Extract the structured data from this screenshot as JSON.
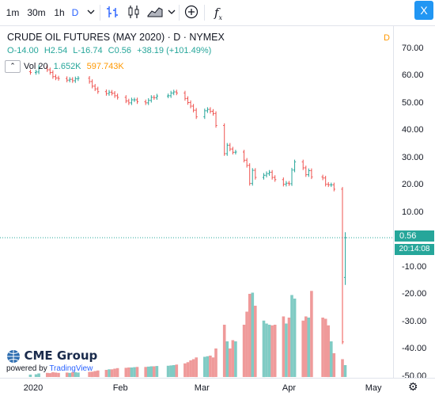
{
  "toolbar": {
    "intervals": [
      "1m",
      "30m",
      "1h",
      "D"
    ],
    "active_interval": "D",
    "close_label": "X"
  },
  "legend": {
    "title": "CRUDE OIL FUTURES (MAY 2020) · D · NYMEX",
    "open_label": "O",
    "open": "-14.00",
    "high_label": "H",
    "high": "2.54",
    "low_label": "L",
    "low": "-16.74",
    "close_label": "C",
    "close": "0.56",
    "change": "+38.19 (+101.49%)",
    "vol_label": "Vol 20",
    "vol_value1": "1.652K",
    "vol_value2": "597.743K"
  },
  "price_axis": {
    "labels": [
      "70.00",
      "60.00",
      "50.00",
      "40.00",
      "30.00",
      "20.00",
      "10.00",
      "-10.00",
      "-20.00",
      "-30.00",
      "-40.00",
      "-50.00"
    ],
    "d_marker": "D",
    "current_price": "0.56",
    "current_time": "20:14:08"
  },
  "time_axis": {
    "labels": [
      "2020",
      "Feb",
      "Mar",
      "Apr",
      "May"
    ]
  },
  "branding": {
    "logo": "CME Group",
    "powered_by": "powered by",
    "tradingview": "TradingView"
  },
  "colors": {
    "up": "#26a69a",
    "down": "#ef5350",
    "vol_up": "#80cbc4",
    "vol_down": "#ef9a9a",
    "accent": "#2962ff",
    "price_tag": "#26a69a"
  },
  "chart_data": {
    "type": "candlestick",
    "title": "CRUDE OIL FUTURES (MAY 2020) · D · NYMEX",
    "ylim": [
      -50,
      75
    ],
    "price_series": [
      {
        "d": "2019-12-31",
        "c": 61.0
      },
      {
        "d": "2020-01-02",
        "c": 61.2
      },
      {
        "d": "2020-01-03",
        "c": 63.0
      },
      {
        "d": "2020-01-06",
        "c": 62.0
      },
      {
        "d": "2020-01-07",
        "c": 61.0
      },
      {
        "d": "2020-01-08",
        "c": 59.5
      },
      {
        "d": "2020-01-09",
        "c": 59.0
      },
      {
        "d": "2020-01-10",
        "c": 58.8
      },
      {
        "d": "2020-01-13",
        "c": 58.2
      },
      {
        "d": "2020-01-14",
        "c": 58.5
      },
      {
        "d": "2020-01-15",
        "c": 58.0
      },
      {
        "d": "2020-01-16",
        "c": 58.7
      },
      {
        "d": "2020-01-17",
        "c": 58.9
      },
      {
        "d": "2020-01-21",
        "c": 57.7
      },
      {
        "d": "2020-01-22",
        "c": 56.0
      },
      {
        "d": "2020-01-23",
        "c": 55.0
      },
      {
        "d": "2020-01-24",
        "c": 54.0
      },
      {
        "d": "2020-01-27",
        "c": 53.3
      },
      {
        "d": "2020-01-28",
        "c": 53.8
      },
      {
        "d": "2020-01-29",
        "c": 53.4
      },
      {
        "d": "2020-01-30",
        "c": 52.5
      },
      {
        "d": "2020-01-31",
        "c": 51.9
      },
      {
        "d": "2020-02-03",
        "c": 50.6
      },
      {
        "d": "2020-02-04",
        "c": 49.9
      },
      {
        "d": "2020-02-05",
        "c": 51.0
      },
      {
        "d": "2020-02-06",
        "c": 51.0
      },
      {
        "d": "2020-02-07",
        "c": 50.3
      },
      {
        "d": "2020-02-10",
        "c": 49.9
      },
      {
        "d": "2020-02-11",
        "c": 50.8
      },
      {
        "d": "2020-02-12",
        "c": 51.9
      },
      {
        "d": "2020-02-13",
        "c": 51.8
      },
      {
        "d": "2020-02-14",
        "c": 52.4
      },
      {
        "d": "2020-02-18",
        "c": 52.5
      },
      {
        "d": "2020-02-19",
        "c": 53.5
      },
      {
        "d": "2020-02-20",
        "c": 53.9
      },
      {
        "d": "2020-02-21",
        "c": 53.5
      },
      {
        "d": "2020-02-24",
        "c": 51.5
      },
      {
        "d": "2020-02-25",
        "c": 50.0
      },
      {
        "d": "2020-02-26",
        "c": 48.7
      },
      {
        "d": "2020-02-27",
        "c": 47.2
      },
      {
        "d": "2020-02-28",
        "c": 44.8
      },
      {
        "d": "2020-03-02",
        "c": 47.0
      },
      {
        "d": "2020-03-03",
        "c": 47.5
      },
      {
        "d": "2020-03-04",
        "c": 46.8
      },
      {
        "d": "2020-03-05",
        "c": 46.0
      },
      {
        "d": "2020-03-06",
        "c": 41.6
      },
      {
        "d": "2020-03-09",
        "c": 31.3
      },
      {
        "d": "2020-03-10",
        "c": 34.4
      },
      {
        "d": "2020-03-11",
        "c": 33.0
      },
      {
        "d": "2020-03-12",
        "c": 31.8
      },
      {
        "d": "2020-03-13",
        "c": 31.9
      },
      {
        "d": "2020-03-16",
        "c": 28.9
      },
      {
        "d": "2020-03-17",
        "c": 27.0
      },
      {
        "d": "2020-03-18",
        "c": 20.4
      },
      {
        "d": "2020-03-19",
        "c": 25.2
      },
      {
        "d": "2020-03-20",
        "c": 22.6
      },
      {
        "d": "2020-03-23",
        "c": 23.4
      },
      {
        "d": "2020-03-24",
        "c": 24.0
      },
      {
        "d": "2020-03-25",
        "c": 24.5
      },
      {
        "d": "2020-03-26",
        "c": 22.6
      },
      {
        "d": "2020-03-27",
        "c": 21.8
      },
      {
        "d": "2020-03-30",
        "c": 20.1
      },
      {
        "d": "2020-03-31",
        "c": 20.5
      },
      {
        "d": "2020-04-01",
        "c": 20.3
      },
      {
        "d": "2020-04-02",
        "c": 25.3
      },
      {
        "d": "2020-04-03",
        "c": 28.3
      },
      {
        "d": "2020-04-06",
        "c": 26.1
      },
      {
        "d": "2020-04-07",
        "c": 23.6
      },
      {
        "d": "2020-04-08",
        "c": 25.1
      },
      {
        "d": "2020-04-09",
        "c": 22.8
      },
      {
        "d": "2020-04-13",
        "c": 22.4
      },
      {
        "d": "2020-04-14",
        "c": 20.1
      },
      {
        "d": "2020-04-15",
        "c": 19.9
      },
      {
        "d": "2020-04-16",
        "c": 19.9
      },
      {
        "d": "2020-04-17",
        "c": 18.3
      },
      {
        "d": "2020-04-20",
        "c": -37.6
      },
      {
        "d": "2020-04-21",
        "c": 0.56,
        "o": -14.0,
        "h": 2.54,
        "l": -16.74
      }
    ],
    "volume_series": [
      {
        "d": "2019-12-31",
        "v": 40
      },
      {
        "d": "2020-01-02",
        "v": 45
      },
      {
        "d": "2020-01-03",
        "v": 60
      },
      {
        "d": "2020-01-06",
        "v": 70
      },
      {
        "d": "2020-01-07",
        "v": 65
      },
      {
        "d": "2020-01-08",
        "v": 80
      },
      {
        "d": "2020-01-09",
        "v": 75
      },
      {
        "d": "2020-01-10",
        "v": 70
      },
      {
        "d": "2020-01-13",
        "v": 75
      },
      {
        "d": "2020-01-14",
        "v": 70
      },
      {
        "d": "2020-01-15",
        "v": 78
      },
      {
        "d": "2020-01-16",
        "v": 80
      },
      {
        "d": "2020-01-17",
        "v": 75
      },
      {
        "d": "2020-01-21",
        "v": 85
      },
      {
        "d": "2020-01-22",
        "v": 90
      },
      {
        "d": "2020-01-23",
        "v": 100
      },
      {
        "d": "2020-01-24",
        "v": 110
      },
      {
        "d": "2020-01-27",
        "v": 120
      },
      {
        "d": "2020-01-28",
        "v": 130
      },
      {
        "d": "2020-01-29",
        "v": 130
      },
      {
        "d": "2020-01-30",
        "v": 140
      },
      {
        "d": "2020-01-31",
        "v": 150
      },
      {
        "d": "2020-02-03",
        "v": 155
      },
      {
        "d": "2020-02-04",
        "v": 160
      },
      {
        "d": "2020-02-05",
        "v": 160
      },
      {
        "d": "2020-02-06",
        "v": 165
      },
      {
        "d": "2020-02-07",
        "v": 170
      },
      {
        "d": "2020-02-10",
        "v": 170
      },
      {
        "d": "2020-02-11",
        "v": 175
      },
      {
        "d": "2020-02-12",
        "v": 180
      },
      {
        "d": "2020-02-13",
        "v": 180
      },
      {
        "d": "2020-02-14",
        "v": 185
      },
      {
        "d": "2020-02-18",
        "v": 190
      },
      {
        "d": "2020-02-19",
        "v": 195
      },
      {
        "d": "2020-02-20",
        "v": 200
      },
      {
        "d": "2020-02-21",
        "v": 210
      },
      {
        "d": "2020-02-24",
        "v": 230
      },
      {
        "d": "2020-02-25",
        "v": 250
      },
      {
        "d": "2020-02-26",
        "v": 280
      },
      {
        "d": "2020-02-27",
        "v": 300
      },
      {
        "d": "2020-02-28",
        "v": 330
      },
      {
        "d": "2020-03-02",
        "v": 340
      },
      {
        "d": "2020-03-03",
        "v": 350
      },
      {
        "d": "2020-03-04",
        "v": 360
      },
      {
        "d": "2020-03-05",
        "v": 330
      },
      {
        "d": "2020-03-06",
        "v": 480
      },
      {
        "d": "2020-03-09",
        "v": 880
      },
      {
        "d": "2020-03-10",
        "v": 600
      },
      {
        "d": "2020-03-11",
        "v": 480
      },
      {
        "d": "2020-03-12",
        "v": 620
      },
      {
        "d": "2020-03-13",
        "v": 600
      },
      {
        "d": "2020-03-16",
        "v": 880
      },
      {
        "d": "2020-03-17",
        "v": 1100
      },
      {
        "d": "2020-03-18",
        "v": 1400
      },
      {
        "d": "2020-03-19",
        "v": 1420
      },
      {
        "d": "2020-03-20",
        "v": 1200
      },
      {
        "d": "2020-03-23",
        "v": 950
      },
      {
        "d": "2020-03-24",
        "v": 900
      },
      {
        "d": "2020-03-25",
        "v": 880
      },
      {
        "d": "2020-03-26",
        "v": 870
      },
      {
        "d": "2020-03-27",
        "v": 880
      },
      {
        "d": "2020-03-30",
        "v": 1020
      },
      {
        "d": "2020-03-31",
        "v": 900
      },
      {
        "d": "2020-04-01",
        "v": 1000
      },
      {
        "d": "2020-04-02",
        "v": 1380
      },
      {
        "d": "2020-04-03",
        "v": 1320
      },
      {
        "d": "2020-04-06",
        "v": 950
      },
      {
        "d": "2020-04-07",
        "v": 1020
      },
      {
        "d": "2020-04-08",
        "v": 1000
      },
      {
        "d": "2020-04-09",
        "v": 1450
      },
      {
        "d": "2020-04-13",
        "v": 1000
      },
      {
        "d": "2020-04-14",
        "v": 980
      },
      {
        "d": "2020-04-15",
        "v": 870
      },
      {
        "d": "2020-04-16",
        "v": 600
      },
      {
        "d": "2020-04-17",
        "v": 400
      },
      {
        "d": "2020-04-20",
        "v": 300
      },
      {
        "d": "2020-04-21",
        "v": 200
      }
    ],
    "current_price_line": 0.56,
    "grid": false,
    "xlabel": "",
    "ylabel": ""
  }
}
